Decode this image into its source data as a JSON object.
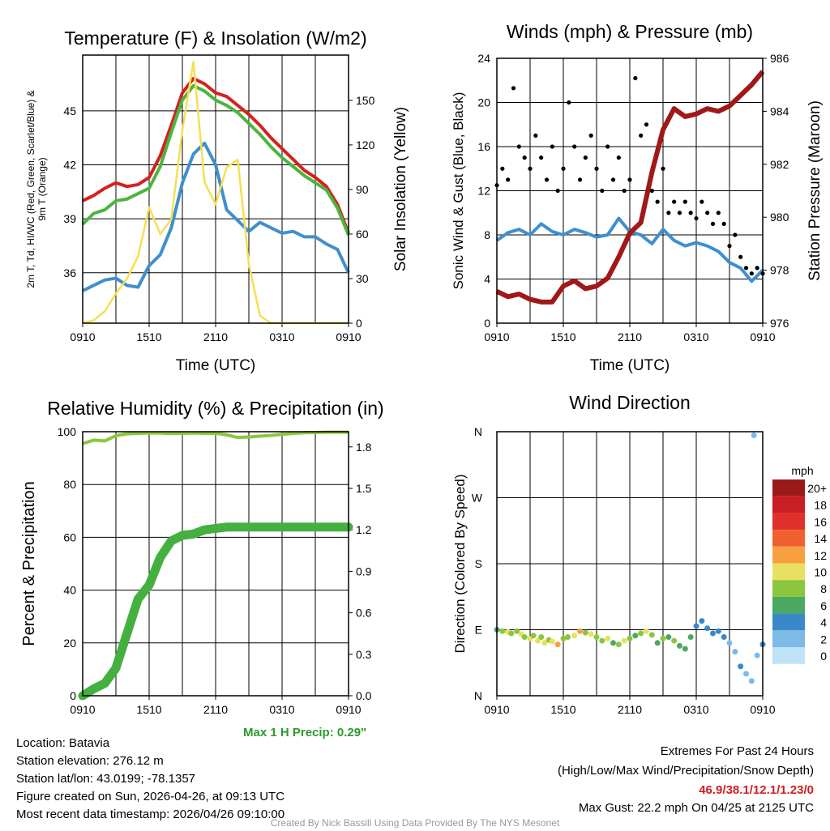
{
  "chart_data": [
    {
      "type": "line",
      "title": "Temperature (F) & Insolation (W/m2)",
      "xlabel": "Time (UTC)",
      "ylabel": "2m T, Td, HI/WC (Red, Green, Scarlet/Blue) & 9m T (Orange)",
      "ylabel_right": "Solar Insolation (Yellow)",
      "x_ticks": [
        "0910",
        "1510",
        "2110",
        "0310",
        "0910"
      ],
      "y_ticks": [
        36,
        39,
        42,
        45
      ],
      "y_ticks_right": [
        0,
        30,
        60,
        90,
        120,
        150
      ],
      "ylim": [
        33.2,
        48.1
      ],
      "ylim_right": [
        0,
        180.5
      ],
      "x_hours": [
        0,
        1,
        2,
        3,
        4,
        5,
        6,
        7,
        8,
        9,
        10,
        11,
        12,
        13,
        14,
        15,
        16,
        17,
        18,
        19,
        20,
        21,
        22,
        23,
        24
      ],
      "series": [
        {
          "name": "2m T",
          "color": "#d62020",
          "axis": "left",
          "values": [
            40.0,
            40.3,
            40.7,
            41.0,
            40.8,
            40.9,
            41.3,
            42.5,
            44.2,
            46.0,
            46.8,
            46.5,
            46.0,
            45.8,
            45.3,
            44.8,
            44.2,
            43.5,
            42.9,
            42.3,
            41.7,
            41.3,
            40.8,
            39.8,
            38.2
          ]
        },
        {
          "name": "WC",
          "color": "#4cb53f",
          "axis": "left",
          "values": [
            38.7,
            39.3,
            39.5,
            40.0,
            40.1,
            40.4,
            40.7,
            41.9,
            43.8,
            45.6,
            46.4,
            46.1,
            45.6,
            45.3,
            44.9,
            44.3,
            43.7,
            43.0,
            42.4,
            41.9,
            41.4,
            41.0,
            40.6,
            39.6,
            38.1
          ]
        },
        {
          "name": "Td",
          "color": "#3f8fcf",
          "axis": "left",
          "values": [
            35.0,
            35.3,
            35.6,
            35.7,
            35.3,
            35.2,
            36.4,
            37.0,
            38.5,
            41.0,
            42.6,
            43.2,
            42.0,
            39.5,
            38.9,
            38.3,
            38.8,
            38.5,
            38.2,
            38.3,
            38.0,
            38.0,
            37.6,
            37.3,
            36.0
          ]
        },
        {
          "name": "Solar",
          "color": "#f5e050",
          "axis": "right",
          "values": [
            0,
            2,
            8,
            20,
            30,
            45,
            78,
            60,
            70,
            130,
            176,
            95,
            80,
            105,
            110,
            40,
            5,
            0,
            0,
            0,
            0,
            0,
            0,
            0,
            0
          ]
        }
      ]
    },
    {
      "type": "line",
      "title": "Winds (mph) & Pressure (mb)",
      "xlabel": "Time (UTC)",
      "ylabel": "Sonic Wind & Gust (Blue, Black)",
      "ylabel_right": "Station Pressure (Maroon)",
      "x_ticks": [
        "0910",
        "1510",
        "2110",
        "0310",
        "0910"
      ],
      "y_ticks": [
        0,
        4,
        8,
        12,
        16,
        20,
        24
      ],
      "y_ticks_right": [
        976,
        978,
        980,
        982,
        984,
        986
      ],
      "ylim": [
        0,
        24
      ],
      "ylim_right": [
        976,
        986
      ],
      "x_hours": [
        0,
        1,
        2,
        3,
        4,
        5,
        6,
        7,
        8,
        9,
        10,
        11,
        12,
        13,
        14,
        15,
        16,
        17,
        18,
        19,
        20,
        21,
        22,
        23,
        24
      ],
      "series": [
        {
          "name": "Sonic Wind",
          "color": "#3f8fcf",
          "axis": "left",
          "values": [
            7.5,
            8.2,
            8.5,
            8.0,
            9.0,
            8.3,
            8.0,
            8.5,
            8.2,
            7.8,
            8.0,
            9.5,
            8.3,
            8.0,
            7.2,
            8.5,
            7.5,
            7.0,
            7.3,
            7.0,
            6.5,
            5.5,
            5.0,
            3.8,
            4.8
          ]
        },
        {
          "name": "Pressure",
          "color": "#a01818",
          "axis": "right",
          "values": [
            977.2,
            977.0,
            977.1,
            976.9,
            976.8,
            976.8,
            977.4,
            977.6,
            977.3,
            977.4,
            977.7,
            978.5,
            979.4,
            979.8,
            981.7,
            983.3,
            984.1,
            983.8,
            983.9,
            984.1,
            984.0,
            984.2,
            984.6,
            985.0,
            985.5
          ]
        },
        {
          "name": "Gust",
          "color": "#000000",
          "axis": "left",
          "type": "scatter",
          "hours": [
            0,
            0.5,
            1,
            1.5,
            2,
            2.5,
            3,
            3.5,
            4,
            4.5,
            5,
            5.5,
            6,
            6.5,
            7,
            7.5,
            8,
            8.5,
            9,
            9.5,
            10,
            10.5,
            11,
            11.5,
            12,
            12.5,
            13,
            13.5,
            14,
            14.5,
            15,
            15.5,
            16,
            16.5,
            17,
            17.5,
            18,
            18.5,
            19,
            19.5,
            20,
            20.5,
            21,
            21.5,
            22,
            22.5,
            23,
            23.5,
            24
          ],
          "values": [
            12.5,
            14,
            13,
            21.3,
            16,
            15,
            14,
            17,
            15,
            13,
            16,
            12,
            14,
            20,
            16,
            13,
            15,
            17,
            14,
            12,
            16,
            13,
            15,
            12,
            13,
            22.2,
            17,
            18,
            12,
            11,
            14,
            10,
            11,
            10,
            11,
            10,
            9.5,
            11,
            10,
            9,
            10,
            9,
            7,
            8,
            6,
            5,
            4.5,
            5,
            4.5
          ]
        }
      ]
    },
    {
      "type": "line",
      "title": "Relative Humidity (%) & Precipitation (in)",
      "ylabel": "Percent & Precipitation",
      "x_ticks": [
        "0910",
        "1510",
        "2110",
        "0310",
        "0910"
      ],
      "y_ticks": [
        0,
        20,
        40,
        60,
        80,
        100
      ],
      "y_ticks_right": [
        "0.0",
        "0.3",
        "0.6",
        "0.9",
        "1.2",
        "1.5",
        "1.8"
      ],
      "ylim": [
        0,
        100
      ],
      "ylim_right": [
        0,
        1.91
      ],
      "x_hours": [
        0,
        1,
        2,
        3,
        4,
        5,
        6,
        7,
        8,
        9,
        10,
        11,
        12,
        13,
        14,
        15,
        16,
        17,
        18,
        19,
        20,
        21,
        22,
        23,
        24
      ],
      "series": [
        {
          "name": "RH",
          "color": "#8cc63f",
          "axis": "left",
          "values": [
            95.5,
            96.8,
            96.5,
            98.5,
            99.2,
            99.4,
            99.5,
            99.5,
            99.3,
            99.4,
            99.5,
            99.4,
            99.4,
            98.8,
            97.8,
            98.0,
            98.3,
            98.6,
            99.0,
            99.4,
            99.6,
            99.7,
            99.8,
            99.8,
            99.8
          ]
        },
        {
          "name": "Precipitation",
          "color": "#44b040",
          "axis": "right",
          "values": [
            0.0,
            0.05,
            0.09,
            0.2,
            0.45,
            0.7,
            0.8,
            1.0,
            1.12,
            1.16,
            1.17,
            1.2,
            1.21,
            1.22,
            1.22,
            1.22,
            1.22,
            1.22,
            1.22,
            1.22,
            1.22,
            1.22,
            1.22,
            1.22,
            1.22
          ]
        }
      ]
    },
    {
      "type": "scatter",
      "title": "Wind Direction",
      "ylabel": "Direction (Colored By Speed)",
      "x_ticks": [
        "0910",
        "1510",
        "2110",
        "0310",
        "0910"
      ],
      "y_ticks": [
        "N",
        "E",
        "S",
        "W",
        "N"
      ],
      "ylim": [
        0,
        360
      ],
      "legend": {
        "title": "mph",
        "position": "right",
        "labels": [
          "20+",
          "18",
          "16",
          "14",
          "12",
          "10",
          "8",
          "6",
          "4",
          "2",
          "0"
        ],
        "colors": [
          "#9a1a1a",
          "#c81e24",
          "#e0302c",
          "#f06030",
          "#f8a040",
          "#e8e060",
          "#8cc63f",
          "#4aa860",
          "#3a88c8",
          "#7cbae8",
          "#bee2f8"
        ]
      },
      "points": [
        [
          0,
          90,
          6
        ],
        [
          0.5,
          88,
          8
        ],
        [
          1,
          87,
          9
        ],
        [
          1.3,
          85,
          7
        ],
        [
          1.8,
          88,
          8
        ],
        [
          2.2,
          84,
          10
        ],
        [
          2.5,
          80,
          7
        ],
        [
          3,
          78,
          9
        ],
        [
          3.3,
          82,
          8
        ],
        [
          3.7,
          75,
          10
        ],
        [
          4,
          80,
          7
        ],
        [
          4.3,
          72,
          9
        ],
        [
          4.7,
          76,
          8
        ],
        [
          5,
          74,
          10
        ],
        [
          5.5,
          70,
          11
        ],
        [
          6,
          78,
          8
        ],
        [
          6.4,
          80,
          7
        ],
        [
          7,
          82,
          9
        ],
        [
          7.5,
          88,
          11
        ],
        [
          8,
          86,
          8
        ],
        [
          8.5,
          84,
          9
        ],
        [
          9,
          80,
          7
        ],
        [
          9.5,
          75,
          8
        ],
        [
          10,
          78,
          9
        ],
        [
          10.5,
          72,
          6
        ],
        [
          11,
          70,
          7
        ],
        [
          11.5,
          75,
          10
        ],
        [
          12,
          78,
          8
        ],
        [
          12.5,
          82,
          6
        ],
        [
          13,
          85,
          7
        ],
        [
          13.5,
          88,
          9
        ],
        [
          14,
          83,
          7
        ],
        [
          14.5,
          72,
          6
        ],
        [
          15,
          78,
          8
        ],
        [
          15.5,
          80,
          6
        ],
        [
          16,
          75,
          7
        ],
        [
          16.5,
          68,
          6
        ],
        [
          17,
          64,
          5
        ],
        [
          17.5,
          80,
          5
        ],
        [
          18,
          95,
          4
        ],
        [
          18.5,
          102,
          4
        ],
        [
          19,
          92,
          3
        ],
        [
          19.5,
          85,
          4
        ],
        [
          20,
          88,
          3
        ],
        [
          20.5,
          80,
          3
        ],
        [
          21,
          72,
          2
        ],
        [
          21.5,
          60,
          2
        ],
        [
          22,
          40,
          3
        ],
        [
          22.5,
          30,
          2
        ],
        [
          23,
          20,
          2
        ],
        [
          23.2,
          355,
          2
        ],
        [
          23.5,
          55,
          2
        ],
        [
          24,
          70,
          3
        ]
      ]
    }
  ],
  "footer": {
    "max_precip": "Max 1 H Precip: 0.29\"",
    "location": "Location: Batavia",
    "elevation": "Station elevation: 276.12 m",
    "latlon": "Station lat/lon: 43.0199; -78.1357",
    "created": "Figure created on Sun, 2026-04-26, at 09:13 UTC",
    "recent": "Most recent data timestamp: 2026/04/26 09:10:00",
    "extremes_title": "Extremes For Past 24 Hours",
    "extremes_sub": "(High/Low/Max Wind/Precipitation/Snow Depth)",
    "extremes_values": "46.9/38.1/12.1/1.23/0",
    "max_gust": "Max Gust: 22.2 mph On 04/25 at 2125 UTC",
    "credit": "Created By Nick Bassill Using Data Provided By The NYS Mesonet"
  }
}
